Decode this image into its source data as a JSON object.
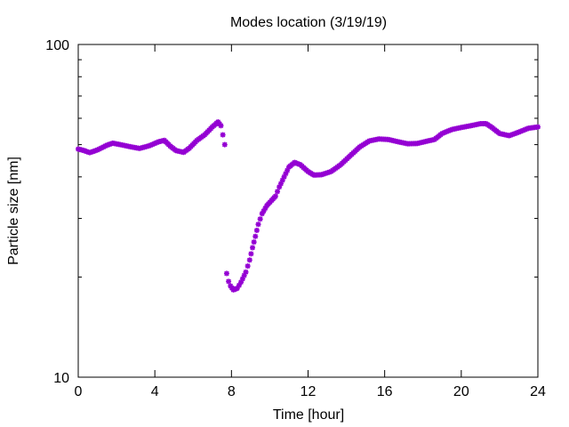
{
  "chart_data": {
    "type": "scatter",
    "title": "Modes location (3/19/19)",
    "xlabel": "Time [hour]",
    "ylabel": "Particle size [nm]",
    "xlim": [
      0,
      24
    ],
    "ylim": [
      10,
      100
    ],
    "yscale": "log",
    "x_ticks": [
      0,
      4,
      8,
      12,
      16,
      20,
      24
    ],
    "y_ticks_labeled": [
      10,
      100
    ],
    "grid": false,
    "marker_color": "#9400d3",
    "series": [
      {
        "name": "",
        "anchors": [
          [
            0.0,
            48.5
          ],
          [
            0.3,
            48.0
          ],
          [
            0.6,
            47.3
          ],
          [
            1.0,
            48.2
          ],
          [
            1.5,
            49.8
          ],
          [
            1.8,
            50.5
          ],
          [
            2.2,
            50.0
          ],
          [
            2.7,
            49.3
          ],
          [
            3.2,
            48.7
          ],
          [
            3.7,
            49.6
          ],
          [
            4.2,
            51.0
          ],
          [
            4.5,
            51.5
          ],
          [
            4.8,
            49.5
          ],
          [
            5.1,
            48.0
          ],
          [
            5.5,
            47.4
          ],
          [
            5.8,
            48.8
          ],
          [
            6.2,
            51.5
          ],
          [
            6.6,
            53.5
          ],
          [
            7.0,
            56.5
          ],
          [
            7.3,
            58.5
          ],
          [
            7.45,
            57.0
          ],
          [
            7.55,
            53.5
          ],
          [
            7.65,
            50.0
          ]
        ],
        "anchors_segment2": [
          [
            7.75,
            20.5
          ],
          [
            7.85,
            19.4
          ],
          [
            7.95,
            18.8
          ],
          [
            8.1,
            18.3
          ],
          [
            8.3,
            18.5
          ],
          [
            8.5,
            19.3
          ],
          [
            8.75,
            20.7
          ],
          [
            8.95,
            22.5
          ],
          [
            9.1,
            24.5
          ],
          [
            9.25,
            26.5
          ],
          [
            9.4,
            28.8
          ],
          [
            9.6,
            31.0
          ],
          [
            9.85,
            32.8
          ],
          [
            10.1,
            34.0
          ],
          [
            10.3,
            35.0
          ],
          [
            10.5,
            37.3
          ],
          [
            10.75,
            40.0
          ],
          [
            11.0,
            42.8
          ],
          [
            11.3,
            44.2
          ],
          [
            11.6,
            43.5
          ],
          [
            12.0,
            41.5
          ],
          [
            12.3,
            40.5
          ],
          [
            12.7,
            40.6
          ],
          [
            13.2,
            41.5
          ],
          [
            13.7,
            43.5
          ],
          [
            14.2,
            46.3
          ],
          [
            14.7,
            49.2
          ],
          [
            15.2,
            51.3
          ],
          [
            15.7,
            52.0
          ],
          [
            16.2,
            51.8
          ],
          [
            16.7,
            51.0
          ],
          [
            17.2,
            50.3
          ],
          [
            17.7,
            50.4
          ],
          [
            18.2,
            51.2
          ],
          [
            18.6,
            51.8
          ],
          [
            19.0,
            54.0
          ],
          [
            19.5,
            55.5
          ],
          [
            20.0,
            56.3
          ],
          [
            20.5,
            57.0
          ],
          [
            21.0,
            57.8
          ],
          [
            21.3,
            57.8
          ],
          [
            21.6,
            56.3
          ],
          [
            22.0,
            54.0
          ],
          [
            22.5,
            53.2
          ],
          [
            23.0,
            54.5
          ],
          [
            23.5,
            56.0
          ],
          [
            24.0,
            56.5
          ]
        ]
      }
    ]
  }
}
